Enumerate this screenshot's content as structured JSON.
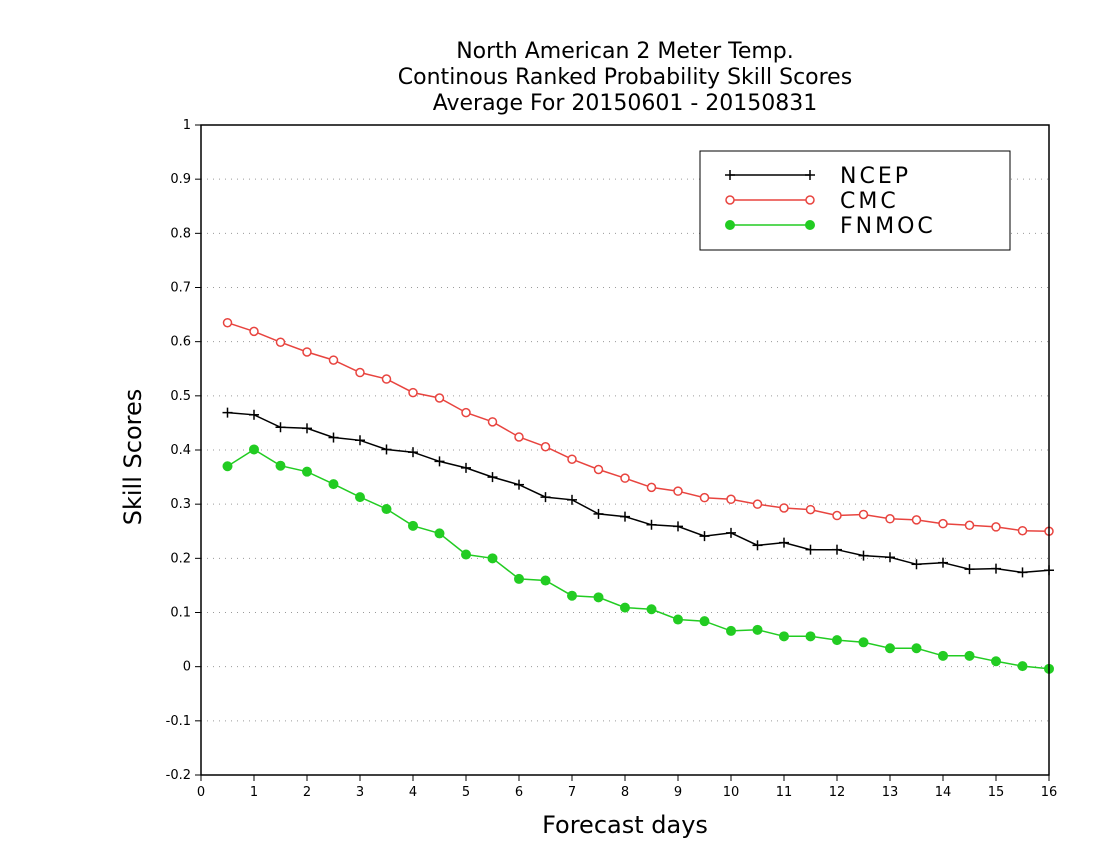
{
  "chart_data": {
    "type": "line",
    "title": [
      "North American 2 Meter Temp.",
      "Continous Ranked Probability Skill Scores",
      "Average For 20150601 - 20150831"
    ],
    "xlabel": "Forecast days",
    "ylabel": "Skill Scores",
    "xlim": [
      0,
      16
    ],
    "ylim": [
      -0.2,
      1
    ],
    "x_ticks": [
      0,
      1,
      2,
      3,
      4,
      5,
      6,
      7,
      8,
      9,
      10,
      11,
      12,
      13,
      14,
      15,
      16
    ],
    "y_ticks": [
      -0.2,
      -0.1,
      0,
      0.1,
      0.2,
      0.3,
      0.4,
      0.5,
      0.6,
      0.7,
      0.8,
      0.9,
      1
    ],
    "y_tick_labels": [
      "-0.2",
      "-0.1",
      "0",
      "0.1",
      "0.2",
      "0.3",
      "0.4",
      "0.5",
      "0.6",
      "0.7",
      "0.8",
      "0.9",
      "1"
    ],
    "grid": "horizontal dotted",
    "legend_position": "top-right",
    "x": [
      0.5,
      1,
      1.5,
      2,
      2.5,
      3,
      3.5,
      4,
      4.5,
      5,
      5.5,
      6,
      6.5,
      7,
      7.5,
      8,
      8.5,
      9,
      9.5,
      10,
      10.5,
      11,
      11.5,
      12,
      12.5,
      13,
      13.5,
      14,
      14.5,
      15,
      15.5,
      16
    ],
    "series": [
      {
        "name": "NCEP",
        "color": "#000000",
        "marker": "plus",
        "values": [
          0.469,
          0.465,
          0.442,
          0.44,
          0.423,
          0.418,
          0.401,
          0.396,
          0.379,
          0.367,
          0.35,
          0.336,
          0.313,
          0.308,
          0.282,
          0.277,
          0.262,
          0.259,
          0.241,
          0.247,
          0.224,
          0.229,
          0.216,
          0.216,
          0.205,
          0.202,
          0.189,
          0.192,
          0.18,
          0.181,
          0.174,
          0.178
        ]
      },
      {
        "name": "CMC",
        "color": "#e8443f",
        "marker": "open-circle",
        "values": [
          0.635,
          0.619,
          0.599,
          0.581,
          0.566,
          0.543,
          0.531,
          0.506,
          0.496,
          0.469,
          0.452,
          0.424,
          0.406,
          0.383,
          0.364,
          0.348,
          0.331,
          0.324,
          0.312,
          0.309,
          0.3,
          0.293,
          0.29,
          0.279,
          0.281,
          0.273,
          0.271,
          0.264,
          0.261,
          0.258,
          0.251,
          0.25
        ]
      },
      {
        "name": "FNMOC",
        "color": "#22cc22",
        "marker": "filled-circle",
        "values": [
          0.37,
          0.401,
          0.371,
          0.36,
          0.337,
          0.313,
          0.291,
          0.26,
          0.246,
          0.207,
          0.2,
          0.162,
          0.159,
          0.131,
          0.128,
          0.109,
          0.106,
          0.087,
          0.084,
          0.066,
          0.068,
          0.056,
          0.056,
          0.049,
          0.045,
          0.034,
          0.034,
          0.02,
          0.02,
          0.01,
          0.001,
          -0.004
        ]
      }
    ]
  }
}
